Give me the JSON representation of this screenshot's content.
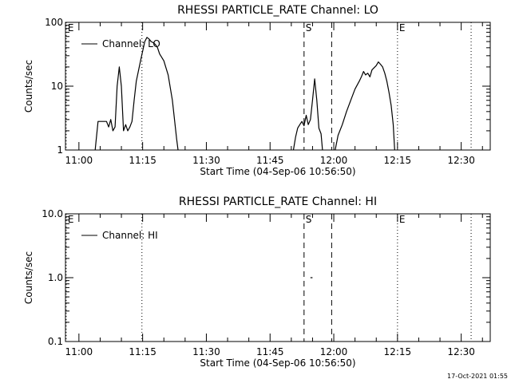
{
  "chart_data": [
    {
      "type": "line",
      "title": "RHESSI PARTICLE_RATE Channel: LO",
      "xlabel": "Start Time (04-Sep-06 10:56:50)",
      "ylabel": "Counts/sec",
      "yscale": "log",
      "ylim": [
        1,
        100
      ],
      "xlim": [
        "10:56:50",
        "12:36:50"
      ],
      "x_ticks": [
        "11:00",
        "11:15",
        "11:30",
        "11:45",
        "12:00",
        "12:15",
        "12:30"
      ],
      "y_ticks": [
        "1",
        "10",
        "100"
      ],
      "legend": {
        "label": "Channel: LO",
        "placement": "top-left"
      },
      "markers": [
        {
          "label": "E",
          "time": "10:57:00",
          "style": "dotted"
        },
        {
          "label": "",
          "time": "11:14:50",
          "style": "dotted"
        },
        {
          "label": "S",
          "time": "11:53:00",
          "style": "dashed"
        },
        {
          "label": "",
          "time": "11:59:30",
          "style": "dashed"
        },
        {
          "label": "E",
          "time": "12:15:00",
          "style": "dotted"
        },
        {
          "label": "",
          "time": "12:32:20",
          "style": "dotted"
        }
      ],
      "series": [
        {
          "name": "Channel: LO",
          "segments": [
            [
              [
                "11:03:50",
                1
              ],
              [
                "11:04:00",
                1.3
              ],
              [
                "11:04:30",
                2.8
              ],
              [
                "11:06:30",
                2.8
              ],
              [
                "11:07:00",
                2.3
              ],
              [
                "11:07:30",
                3.0
              ],
              [
                "11:08:00",
                2.0
              ],
              [
                "11:08:30",
                2.3
              ],
              [
                "11:09:00",
                10
              ],
              [
                "11:09:30",
                20
              ],
              [
                "11:10:00",
                10
              ],
              [
                "11:10:30",
                2.0
              ],
              [
                "11:11:00",
                2.5
              ],
              [
                "11:11:30",
                2.0
              ],
              [
                "11:12:00",
                2.3
              ],
              [
                "11:12:30",
                2.8
              ],
              [
                "11:13:00",
                6
              ],
              [
                "11:13:30",
                12
              ],
              [
                "11:14:30",
                25
              ],
              [
                "11:15:30",
                50
              ],
              [
                "11:16:00",
                58
              ],
              [
                "11:16:30",
                55
              ],
              [
                "11:17:00",
                50
              ],
              [
                "11:17:30",
                48
              ],
              [
                "11:18:00",
                45
              ],
              [
                "11:18:30",
                40
              ],
              [
                "11:19:00",
                32
              ],
              [
                "11:20:00",
                25
              ],
              [
                "11:21:00",
                15
              ],
              [
                "11:22:00",
                6
              ],
              [
                "11:23:00",
                1.5
              ],
              [
                "11:23:20",
                1
              ]
            ],
            [
              [
                "11:50:30",
                1
              ],
              [
                "11:51:00",
                1.6
              ],
              [
                "11:51:30",
                2.2
              ],
              [
                "11:52:00",
                2.5
              ],
              [
                "11:52:30",
                2.8
              ],
              [
                "11:53:00",
                2.4
              ],
              [
                "11:53:30",
                3.5
              ],
              [
                "11:54:00",
                2.5
              ],
              [
                "11:54:30",
                3.0
              ],
              [
                "11:55:00",
                6
              ],
              [
                "11:55:30",
                13
              ],
              [
                "11:56:00",
                6
              ],
              [
                "11:56:30",
                2.2
              ],
              [
                "11:57:00",
                1.8
              ],
              [
                "11:57:20",
                1
              ]
            ],
            [
              [
                "12:00:20",
                1
              ],
              [
                "12:01:00",
                1.7
              ],
              [
                "12:02:00",
                2.5
              ],
              [
                "12:03:00",
                4
              ],
              [
                "12:04:00",
                6
              ],
              [
                "12:05:00",
                9
              ],
              [
                "12:06:00",
                12
              ],
              [
                "12:06:30",
                14
              ],
              [
                "12:07:00",
                17
              ],
              [
                "12:07:30",
                15
              ],
              [
                "12:08:00",
                16
              ],
              [
                "12:08:30",
                14
              ],
              [
                "12:09:00",
                18
              ],
              [
                "12:10:00",
                21
              ],
              [
                "12:10:30",
                24
              ],
              [
                "12:11:00",
                22
              ],
              [
                "12:11:30",
                20
              ],
              [
                "12:12:00",
                16
              ],
              [
                "12:12:30",
                12
              ],
              [
                "12:13:00",
                8
              ],
              [
                "12:13:30",
                5
              ],
              [
                "12:14:00",
                2.5
              ],
              [
                "12:14:20",
                1
              ]
            ]
          ]
        }
      ]
    },
    {
      "type": "line",
      "title": "RHESSI PARTICLE_RATE Channel: HI",
      "xlabel": "Start Time (04-Sep-06 10:56:50)",
      "ylabel": "Counts/sec",
      "yscale": "log",
      "ylim": [
        0.1,
        10
      ],
      "xlim": [
        "10:56:50",
        "12:36:50"
      ],
      "x_ticks": [
        "11:00",
        "11:15",
        "11:30",
        "11:45",
        "12:00",
        "12:15",
        "12:30"
      ],
      "y_ticks": [
        "0.1",
        "1.0",
        "10.0"
      ],
      "legend": {
        "label": "Channel: HI",
        "placement": "top-left"
      },
      "markers": [
        {
          "label": "E",
          "time": "10:57:00",
          "style": "dotted"
        },
        {
          "label": "",
          "time": "11:14:50",
          "style": "dotted"
        },
        {
          "label": "S",
          "time": "11:53:00",
          "style": "dashed"
        },
        {
          "label": "",
          "time": "11:59:30",
          "style": "dashed"
        },
        {
          "label": "E",
          "time": "12:15:00",
          "style": "dotted"
        },
        {
          "label": "",
          "time": "12:32:20",
          "style": "dotted"
        }
      ],
      "series": [
        {
          "name": "Channel: HI",
          "segments": [
            [
              [
                "11:54:30",
                1.0
              ],
              [
                "11:55:00",
                1.0
              ]
            ]
          ]
        }
      ]
    }
  ],
  "timestamp": "17-Oct-2021 01:55"
}
